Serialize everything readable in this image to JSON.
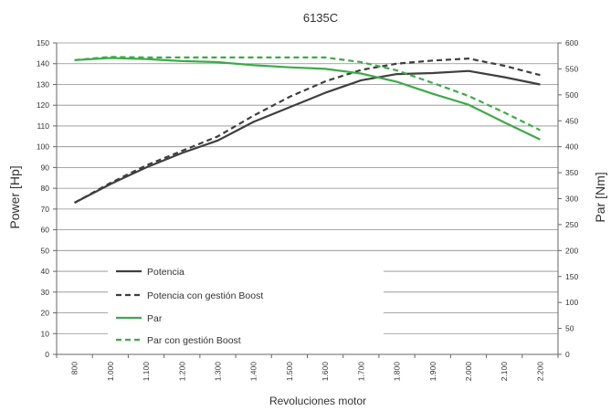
{
  "chart_data": {
    "type": "line",
    "title": "6135C",
    "xlabel": "Revoluciones motor",
    "ylabel_left": "Power [Hp]",
    "ylabel_right": "Par [Nm]",
    "categories": [
      "800",
      "1.000",
      "1.100",
      "1.200",
      "1.300",
      "1.400",
      "1.500",
      "1.600",
      "1.700",
      "1.800",
      "1.900",
      "2.000",
      "2.100",
      "2.200"
    ],
    "y_left": {
      "min": 0,
      "max": 150,
      "step": 10
    },
    "y_right": {
      "min": 0,
      "max": 600,
      "step": 50
    },
    "grid": true,
    "legend_position": "bottom-left",
    "series": [
      {
        "name": "Potencia",
        "axis": "left",
        "style": "solid",
        "color": "#3f3f3f",
        "values": [
          73,
          82,
          90,
          97,
          103,
          112,
          119,
          126,
          132,
          135,
          135.5,
          136.5,
          133.5,
          130
        ]
      },
      {
        "name": "Potencia con gestión Boost",
        "axis": "left",
        "style": "dashed",
        "color": "#3f3f3f",
        "values": [
          73,
          82.5,
          91,
          98,
          105,
          115,
          124,
          131.5,
          137,
          140,
          141.5,
          142.5,
          139,
          134.5
        ]
      },
      {
        "name": "Par",
        "axis": "right",
        "style": "solid",
        "color": "#3cab48",
        "values": [
          567,
          571,
          569,
          565,
          563,
          557,
          553,
          550,
          541,
          525,
          502,
          481,
          447,
          414
        ]
      },
      {
        "name": "Par con gestión Boost",
        "axis": "right",
        "style": "dashed",
        "color": "#3cab48",
        "values": [
          567,
          573,
          572,
          572,
          572,
          572,
          572,
          572,
          563,
          547,
          523,
          498,
          466,
          432
        ]
      }
    ]
  }
}
